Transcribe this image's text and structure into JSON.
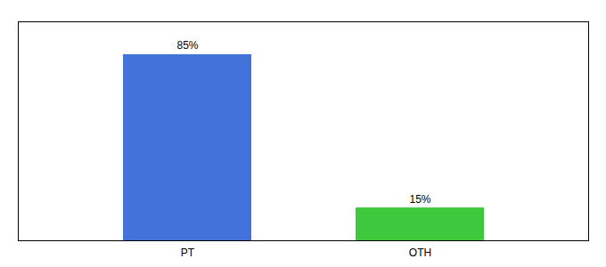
{
  "chart_data": {
    "type": "bar",
    "categories": [
      "PT",
      "OTH"
    ],
    "values": [
      85,
      15
    ],
    "value_labels": [
      "85%",
      "15%"
    ],
    "colors": [
      "#4472db",
      "#3dc83d"
    ],
    "ylim": [
      0,
      100
    ],
    "data_labels": true,
    "tick_labels": "x",
    "grid": false
  }
}
